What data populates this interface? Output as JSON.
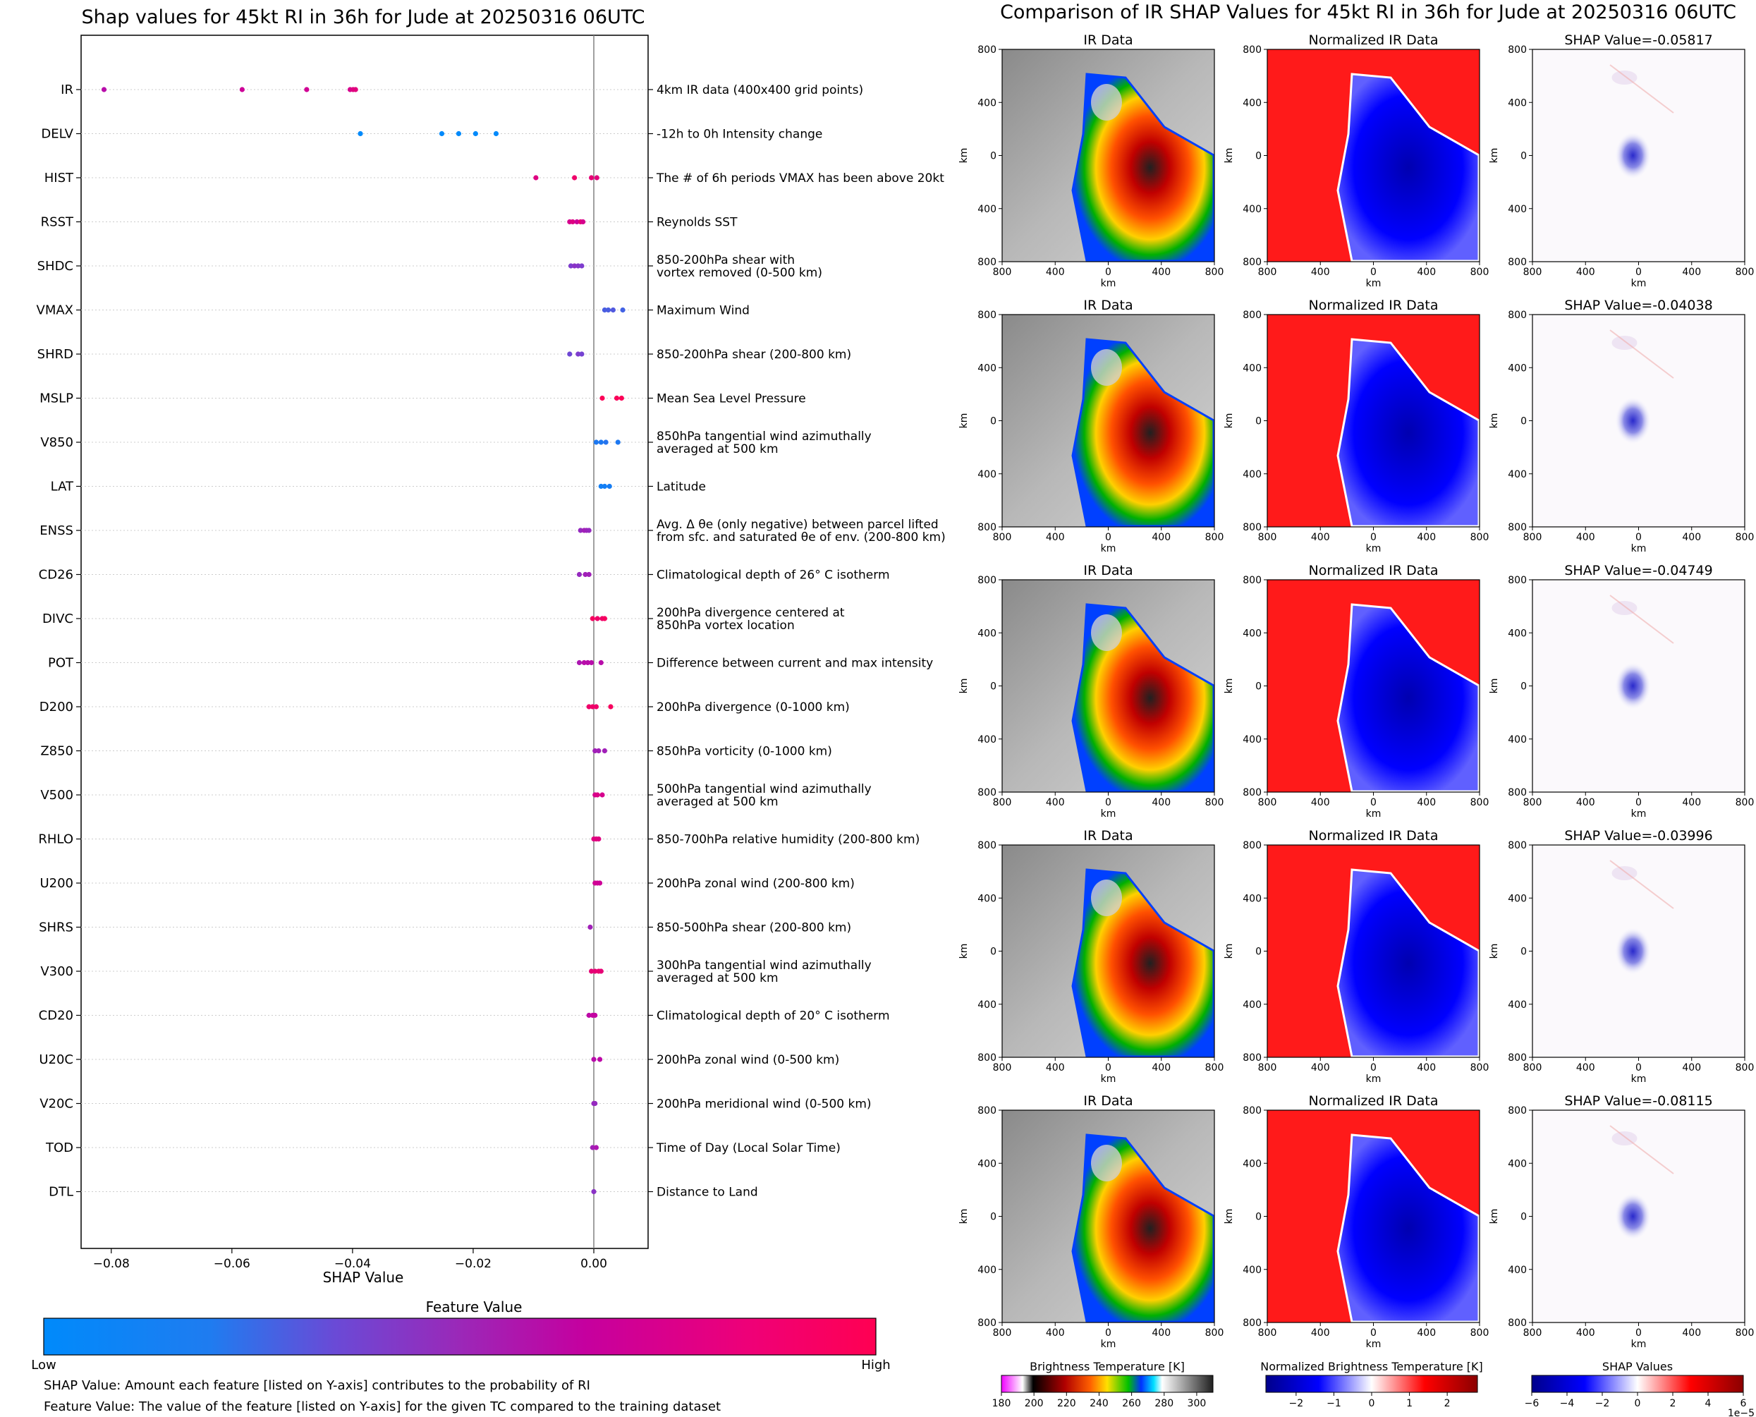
{
  "chart_data": [
    {
      "type": "scatter",
      "title": "Shap values for 45kt RI in 36h for Jude at 20250316 06UTC",
      "xlabel": "SHAP Value",
      "xlim": [
        -0.085,
        0.009
      ],
      "xticks": [
        "−0.08",
        "−0.06",
        "−0.04",
        "−0.02",
        "0.00"
      ],
      "zero_line": true,
      "grid": false,
      "colorbar": {
        "title": "Feature Value",
        "low_label": "Low",
        "high_label": "High",
        "colors": [
          "#008afb",
          "#7a3fd0",
          "#c800a0",
          "#ff0052"
        ]
      },
      "features": [
        {
          "name": "IR",
          "desc": "4km IR data (400x400 grid points)",
          "points": [
            [
              -0.0812,
              0.6
            ],
            [
              -0.0583,
              0.7
            ],
            [
              -0.0476,
              0.72
            ],
            [
              -0.0404,
              0.75
            ],
            [
              -0.0399,
              0.8
            ],
            [
              -0.0395,
              0.82
            ]
          ]
        },
        {
          "name": "DELV",
          "desc": "-12h to 0h Intensity change",
          "points": [
            [
              -0.0387,
              0.0
            ],
            [
              -0.0252,
              0.0
            ],
            [
              -0.0224,
              0.0
            ],
            [
              -0.0196,
              0.0
            ],
            [
              -0.0162,
              0.0
            ]
          ]
        },
        {
          "name": "HIST",
          "desc": "The # of 6h periods VMAX has been above 20kt",
          "points": [
            [
              -0.0096,
              0.8
            ],
            [
              -0.0032,
              0.9
            ],
            [
              -0.0004,
              0.85
            ],
            [
              0.0005,
              0.82
            ]
          ]
        },
        {
          "name": "RSST",
          "desc": "Reynolds SST",
          "points": [
            [
              -0.004,
              0.75
            ],
            [
              -0.0035,
              0.8
            ],
            [
              -0.0028,
              0.7
            ],
            [
              -0.0022,
              0.85
            ],
            [
              -0.0018,
              0.75
            ]
          ]
        },
        {
          "name": "SHDC",
          "desc": "850-200hPa shear with vortex removed (0-500 km)",
          "points": [
            [
              -0.0038,
              0.35
            ],
            [
              -0.0032,
              0.4
            ],
            [
              -0.0026,
              0.38
            ],
            [
              -0.002,
              0.35
            ]
          ]
        },
        {
          "name": "VMAX",
          "desc": "Maximum Wind",
          "points": [
            [
              0.0018,
              0.2
            ],
            [
              0.0024,
              0.2
            ],
            [
              0.0032,
              0.22
            ],
            [
              0.0048,
              0.18
            ]
          ]
        },
        {
          "name": "SHRD",
          "desc": "850-200hPa shear (200-800 km)",
          "points": [
            [
              -0.004,
              0.3
            ],
            [
              -0.0026,
              0.35
            ],
            [
              -0.002,
              0.32
            ]
          ]
        },
        {
          "name": "MSLP",
          "desc": "Mean Sea Level Pressure",
          "points": [
            [
              0.0014,
              0.98
            ],
            [
              0.0038,
              0.97
            ],
            [
              0.0046,
              0.98
            ]
          ]
        },
        {
          "name": "V850",
          "desc": "850hPa tangential wind azimuthally averaged at 500 km",
          "points": [
            [
              0.0004,
              0.08
            ],
            [
              0.0012,
              0.08
            ],
            [
              0.002,
              0.1
            ],
            [
              0.004,
              0.08
            ]
          ]
        },
        {
          "name": "LAT",
          "desc": "Latitude",
          "points": [
            [
              0.0012,
              0.05
            ],
            [
              0.0018,
              0.05
            ],
            [
              0.0026,
              0.06
            ]
          ]
        },
        {
          "name": "ENSS",
          "desc": "Avg. Δ θe (only negative) between parcel lifted from sfc. and saturated θe of env. (200-800 km)",
          "points": [
            [
              -0.0022,
              0.45
            ],
            [
              -0.0016,
              0.5
            ],
            [
              -0.0012,
              0.48
            ],
            [
              -0.0008,
              0.45
            ]
          ]
        },
        {
          "name": "CD26",
          "desc": "Climatological depth of 26° C isotherm",
          "points": [
            [
              -0.0024,
              0.45
            ],
            [
              -0.0014,
              0.5
            ],
            [
              -0.0008,
              0.5
            ]
          ]
        },
        {
          "name": "DIVC",
          "desc": "200hPa divergence centered at 850hPa vortex location",
          "points": [
            [
              -0.0002,
              0.95
            ],
            [
              0.0006,
              0.9
            ],
            [
              0.0014,
              0.9
            ],
            [
              0.0018,
              0.95
            ]
          ]
        },
        {
          "name": "POT",
          "desc": "Difference between current and max intensity",
          "points": [
            [
              -0.0024,
              0.55
            ],
            [
              -0.0016,
              0.6
            ],
            [
              -0.001,
              0.6
            ],
            [
              -0.0004,
              0.6
            ],
            [
              0.0012,
              0.6
            ]
          ]
        },
        {
          "name": "D200",
          "desc": "200hPa divergence (0-1000 km)",
          "points": [
            [
              -0.0008,
              0.9
            ],
            [
              -0.0002,
              0.9
            ],
            [
              0.0004,
              0.9
            ],
            [
              0.0028,
              0.95
            ]
          ]
        },
        {
          "name": "Z850",
          "desc": "850hPa vorticity (0-1000 km)",
          "points": [
            [
              0.0002,
              0.5
            ],
            [
              0.0008,
              0.5
            ],
            [
              0.0018,
              0.5
            ]
          ]
        },
        {
          "name": "V500",
          "desc": "500hPa tangential wind azimuthally averaged at 500 km",
          "points": [
            [
              0.0002,
              0.75
            ],
            [
              0.0006,
              0.78
            ],
            [
              0.0014,
              0.75
            ]
          ]
        },
        {
          "name": "RHLO",
          "desc": "850-700hPa relative humidity (200-800 km)",
          "points": [
            [
              0.0,
              0.8
            ],
            [
              0.0004,
              0.82
            ],
            [
              0.0008,
              0.8
            ]
          ]
        },
        {
          "name": "U200",
          "desc": "200hPa zonal wind (200-800 km)",
          "points": [
            [
              0.0002,
              0.72
            ],
            [
              0.0006,
              0.72
            ],
            [
              0.001,
              0.7
            ]
          ]
        },
        {
          "name": "SHRS",
          "desc": "850-500hPa shear (200-800 km)",
          "points": [
            [
              -0.0006,
              0.5
            ]
          ]
        },
        {
          "name": "V300",
          "desc": "300hPa tangential wind azimuthally averaged at 500 km",
          "points": [
            [
              -0.0004,
              0.85
            ],
            [
              0.0002,
              0.85
            ],
            [
              0.0008,
              0.88
            ],
            [
              0.0012,
              0.85
            ]
          ]
        },
        {
          "name": "CD20",
          "desc": "Climatological depth of 20° C isotherm",
          "points": [
            [
              -0.0008,
              0.62
            ],
            [
              -0.0002,
              0.65
            ],
            [
              0.0002,
              0.65
            ]
          ]
        },
        {
          "name": "U20C",
          "desc": "200hPa zonal wind (0-500 km)",
          "points": [
            [
              0.0,
              0.6
            ],
            [
              0.001,
              0.62
            ]
          ]
        },
        {
          "name": "V20C",
          "desc": "200hPa meridional wind (0-500 km)",
          "points": [
            [
              0.0,
              0.45
            ],
            [
              0.0002,
              0.45
            ]
          ]
        },
        {
          "name": "TOD",
          "desc": "Time of Day (Local Solar Time)",
          "points": [
            [
              -0.0002,
              0.5
            ],
            [
              0.0004,
              0.55
            ]
          ]
        },
        {
          "name": "DTL",
          "desc": "Distance to Land",
          "points": [
            [
              0.0,
              0.4
            ]
          ]
        }
      ]
    },
    {
      "type": "heatmap",
      "title": "Comparison of IR SHAP Values for 45kt RI in 36h for Jude at 20250316 06UTC",
      "panel_titles": [
        "IR Data",
        "Normalized IR Data"
      ],
      "axis_label": "km",
      "xticks": [
        "800",
        "400",
        "0",
        "400",
        "800"
      ],
      "yticks": [
        "800",
        "400",
        "0",
        "400",
        "800"
      ],
      "shap_values": [
        "-0.05817",
        "-0.04038",
        "-0.04749",
        "-0.03996",
        "-0.08115"
      ],
      "shap_title_prefix": "SHAP Value=",
      "colorbars": [
        {
          "title": "Brightness Temperature [K]",
          "ticks": [
            "180",
            "200",
            "220",
            "240",
            "260",
            "280",
            "300"
          ],
          "range": [
            180,
            310
          ]
        },
        {
          "title": "Normalized Brightness Temperature [K]",
          "ticks": [
            "−2",
            "−1",
            "0",
            "1",
            "2"
          ],
          "range": [
            -2.8,
            2.8
          ]
        },
        {
          "title": "SHAP Values",
          "ticks": [
            "−6",
            "−4",
            "−2",
            "0",
            "2",
            "4",
            "6"
          ],
          "range": [
            -6,
            6
          ],
          "offset_label": "1e−5"
        }
      ]
    }
  ],
  "notes": {
    "line1": "SHAP Value: Amount each feature [listed on Y-axis] contributes to the probability of RI",
    "line2": "Feature Value: The value of the feature [listed on Y-axis] for the given TC compared to the training dataset"
  }
}
